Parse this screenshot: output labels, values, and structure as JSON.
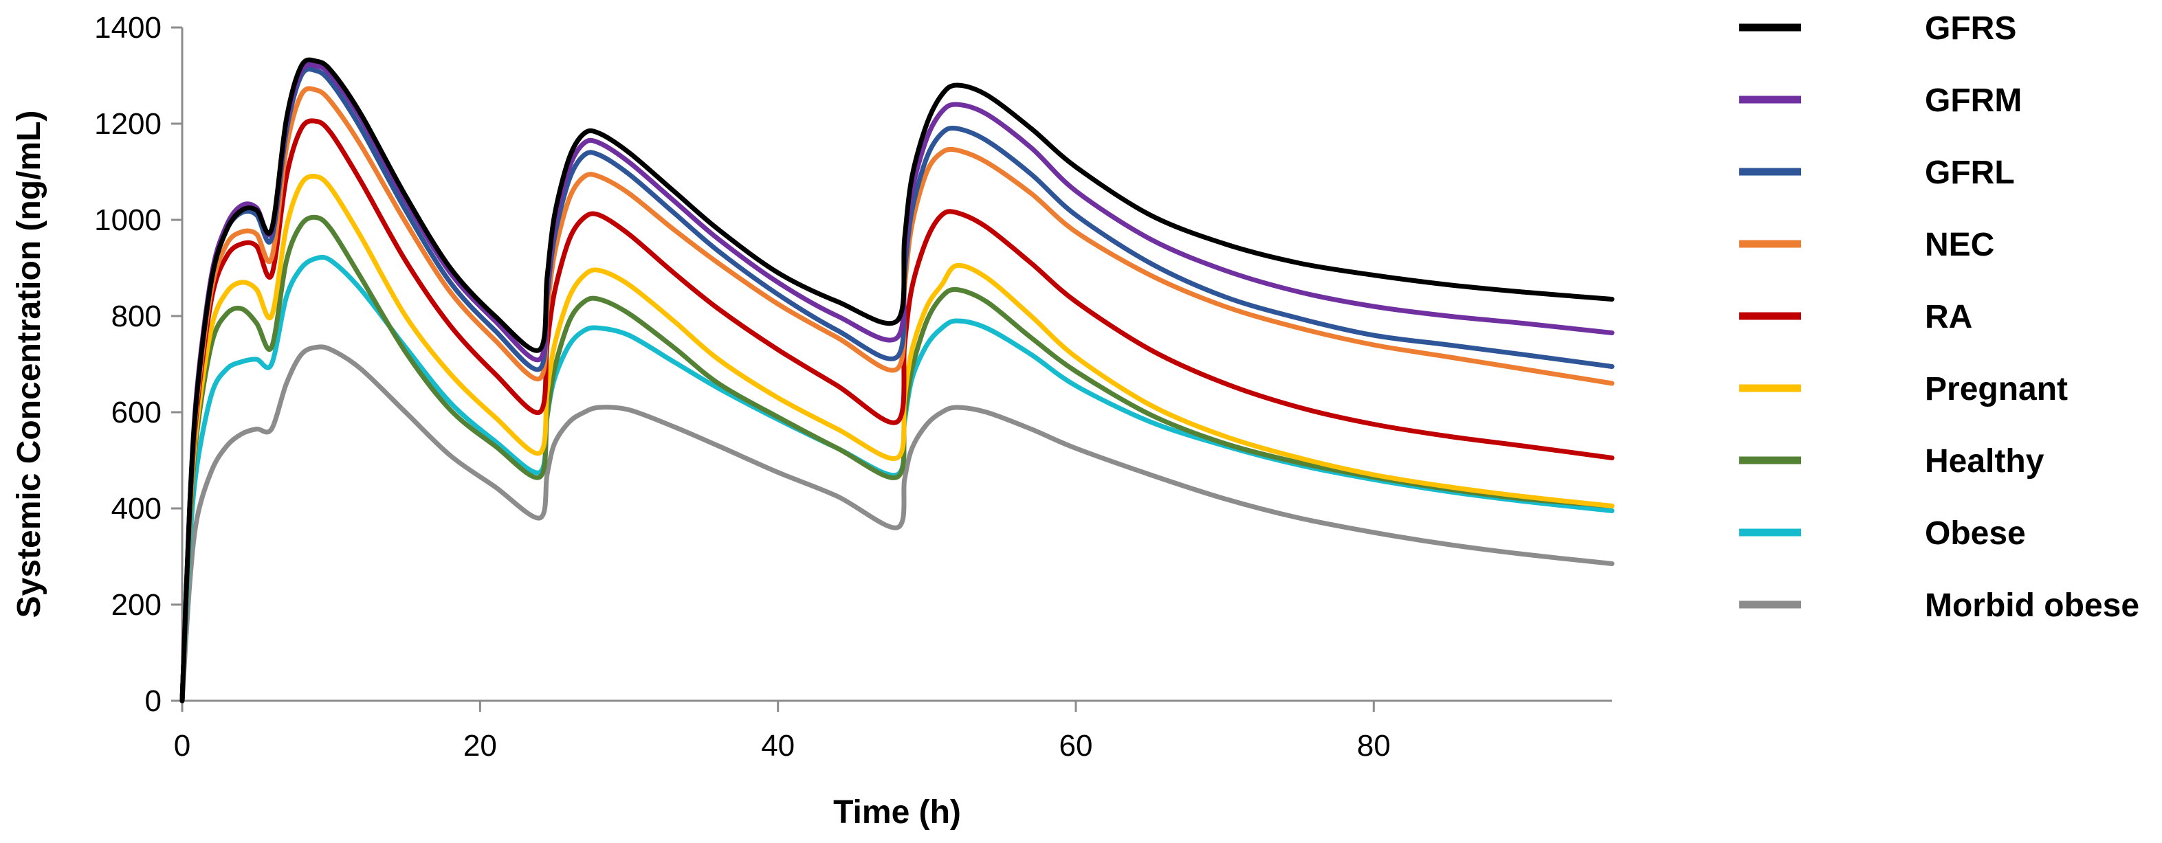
{
  "chart_data": {
    "type": "line",
    "xlabel": "Time (h)",
    "ylabel": "Systemic Concentration (ng/mL)",
    "xlim": [
      0,
      96
    ],
    "ylim": [
      0,
      1400
    ],
    "xticks": [
      0,
      20,
      40,
      60,
      80
    ],
    "yticks": [
      0,
      200,
      400,
      600,
      800,
      1000,
      1200,
      1400
    ],
    "grid": false,
    "legend_position": "right",
    "x": [
      0,
      0.5,
      1,
      2,
      3,
      4,
      5,
      6,
      7,
      8,
      9,
      10,
      12,
      15,
      18,
      21,
      24,
      24.5,
      25,
      26,
      27,
      28,
      30,
      33,
      36,
      40,
      44,
      48,
      48.5,
      49,
      50,
      51,
      52,
      54,
      57,
      60,
      65,
      70,
      75,
      80,
      85,
      90,
      96
    ],
    "series": [
      {
        "name": "GFRS",
        "color": "#000000",
        "values": [
          0,
          400,
          640,
          880,
          980,
          1020,
          1020,
          980,
          1210,
          1320,
          1330,
          1310,
          1220,
          1050,
          900,
          800,
          730,
          880,
          1010,
          1130,
          1180,
          1180,
          1140,
          1060,
          980,
          890,
          830,
          790,
          960,
          1090,
          1200,
          1260,
          1280,
          1260,
          1190,
          1110,
          1010,
          950,
          910,
          885,
          865,
          850,
          835
        ]
      },
      {
        "name": "GFRM",
        "color": "#7030a0",
        "values": [
          0,
          400,
          650,
          890,
          990,
          1030,
          1025,
          975,
          1200,
          1310,
          1320,
          1300,
          1210,
          1040,
          890,
          790,
          710,
          860,
          990,
          1110,
          1160,
          1160,
          1120,
          1040,
          960,
          870,
          800,
          755,
          930,
          1060,
          1170,
          1225,
          1240,
          1220,
          1150,
          1060,
          960,
          895,
          850,
          820,
          800,
          785,
          765
        ]
      },
      {
        "name": "GFRL",
        "color": "#2e5597",
        "values": [
          0,
          395,
          640,
          880,
          980,
          1015,
          1010,
          960,
          1185,
          1300,
          1310,
          1285,
          1190,
          1020,
          870,
          770,
          690,
          840,
          965,
          1085,
          1135,
          1135,
          1095,
          1015,
          935,
          845,
          770,
          715,
          890,
          1020,
          1130,
          1180,
          1190,
          1165,
          1095,
          1010,
          910,
          840,
          795,
          760,
          740,
          720,
          695
        ]
      },
      {
        "name": "NEC",
        "color": "#ed7d31",
        "values": [
          0,
          390,
          625,
          860,
          950,
          975,
          970,
          920,
          1150,
          1260,
          1270,
          1245,
          1155,
          995,
          850,
          750,
          670,
          810,
          930,
          1045,
          1090,
          1090,
          1055,
          980,
          910,
          825,
          755,
          690,
          860,
          990,
          1100,
          1140,
          1145,
          1120,
          1055,
          975,
          885,
          820,
          775,
          740,
          715,
          690,
          660
        ]
      },
      {
        "name": "RA",
        "color": "#c00000",
        "values": [
          0,
          385,
          610,
          840,
          925,
          950,
          945,
          885,
          1090,
          1190,
          1205,
          1180,
          1080,
          915,
          780,
          680,
          600,
          740,
          850,
          960,
          1005,
          1010,
          970,
          890,
          815,
          730,
          655,
          580,
          740,
          860,
          960,
          1010,
          1015,
          985,
          910,
          830,
          730,
          660,
          610,
          575,
          550,
          530,
          505
        ]
      },
      {
        "name": "Pregnant",
        "color": "#ffc000",
        "values": [
          0,
          375,
          580,
          780,
          850,
          870,
          855,
          800,
          985,
          1075,
          1090,
          1065,
          965,
          800,
          680,
          590,
          515,
          640,
          740,
          840,
          885,
          895,
          865,
          790,
          710,
          630,
          565,
          505,
          630,
          730,
          820,
          865,
          905,
          880,
          800,
          715,
          615,
          550,
          505,
          470,
          445,
          425,
          405
        ]
      },
      {
        "name": "Healthy",
        "color": "#548235",
        "values": [
          0,
          360,
          560,
          745,
          805,
          815,
          785,
          735,
          915,
          990,
          1005,
          980,
          880,
          725,
          605,
          530,
          465,
          590,
          690,
          790,
          830,
          835,
          805,
          735,
          660,
          590,
          525,
          465,
          590,
          690,
          790,
          840,
          855,
          830,
          755,
          685,
          595,
          535,
          495,
          465,
          440,
          420,
          405
        ]
      },
      {
        "name": "Obese",
        "color": "#17bbce",
        "values": [
          0,
          320,
          490,
          640,
          690,
          705,
          710,
          700,
          840,
          900,
          920,
          915,
          855,
          735,
          620,
          540,
          475,
          590,
          670,
          740,
          770,
          775,
          760,
          705,
          650,
          585,
          525,
          470,
          580,
          670,
          740,
          775,
          790,
          775,
          720,
          655,
          580,
          530,
          490,
          460,
          435,
          415,
          395
        ]
      },
      {
        "name": "Morbid obese",
        "color": "#8c8c8c",
        "values": [
          0,
          240,
          380,
          480,
          530,
          555,
          565,
          565,
          660,
          720,
          735,
          730,
          690,
          600,
          510,
          445,
          380,
          470,
          535,
          580,
          600,
          610,
          605,
          570,
          530,
          475,
          425,
          360,
          460,
          525,
          575,
          600,
          610,
          600,
          565,
          525,
          470,
          420,
          380,
          350,
          325,
          305,
          285
        ]
      }
    ]
  }
}
